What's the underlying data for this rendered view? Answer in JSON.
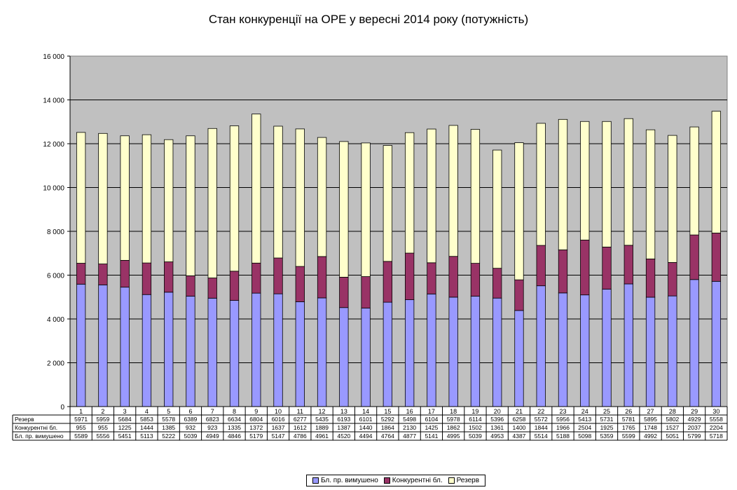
{
  "chart_data": {
    "type": "bar",
    "stacked": true,
    "title": "Стан конкуренції на ОРЕ  у вересні 2014 року (потужність)",
    "xlabel": "",
    "ylabel": "",
    "ylim": [
      0,
      16000
    ],
    "ytick_step": 2000,
    "yticks": [
      "0",
      "2 000",
      "4 000",
      "6 000",
      "8 000",
      "10 000",
      "12 000",
      "14 000",
      "16 000"
    ],
    "grid": true,
    "plot_background": "#c0c0c0",
    "legend_position": "bottom",
    "categories": [
      "1",
      "2",
      "3",
      "4",
      "5",
      "6",
      "7",
      "8",
      "9",
      "10",
      "11",
      "12",
      "13",
      "14",
      "15",
      "16",
      "17",
      "18",
      "19",
      "20",
      "21",
      "22",
      "23",
      "24",
      "25",
      "26",
      "27",
      "28",
      "29",
      "30"
    ],
    "series": [
      {
        "name": "Бл. пр. вимушено",
        "color": "#9999ff",
        "values": [
          5589,
          5556,
          5451,
          5113,
          5222,
          5039,
          4949,
          4846,
          5179,
          5147,
          4786,
          4961,
          4520,
          4494,
          4764,
          4877,
          5141,
          4995,
          5039,
          4953,
          4387,
          5514,
          5188,
          5098,
          5359,
          5599,
          4992,
          5051,
          5799,
          5718
        ]
      },
      {
        "name": "Конкурентні бл.",
        "color": "#993366",
        "values": [
          955,
          955,
          1225,
          1444,
          1385,
          932,
          923,
          1335,
          1372,
          1637,
          1612,
          1889,
          1387,
          1440,
          1864,
          2130,
          1425,
          1862,
          1502,
          1361,
          1400,
          1844,
          1966,
          2504,
          1925,
          1765,
          1748,
          1527,
          2037,
          2204
        ]
      },
      {
        "name": "Резерв",
        "color": "#ffffcc",
        "values": [
          5971,
          5959,
          5684,
          5853,
          5578,
          6389,
          6823,
          6634,
          6804,
          6016,
          6277,
          5435,
          6193,
          6101,
          5292,
          5498,
          6104,
          5978,
          6114,
          5396,
          6258,
          5572,
          5956,
          5413,
          5731,
          5781,
          5895,
          5802,
          4929,
          5558
        ]
      }
    ],
    "table_rows": [
      "Резерв",
      "Конкурентні бл.",
      "Бл. пр. вимушено"
    ]
  }
}
